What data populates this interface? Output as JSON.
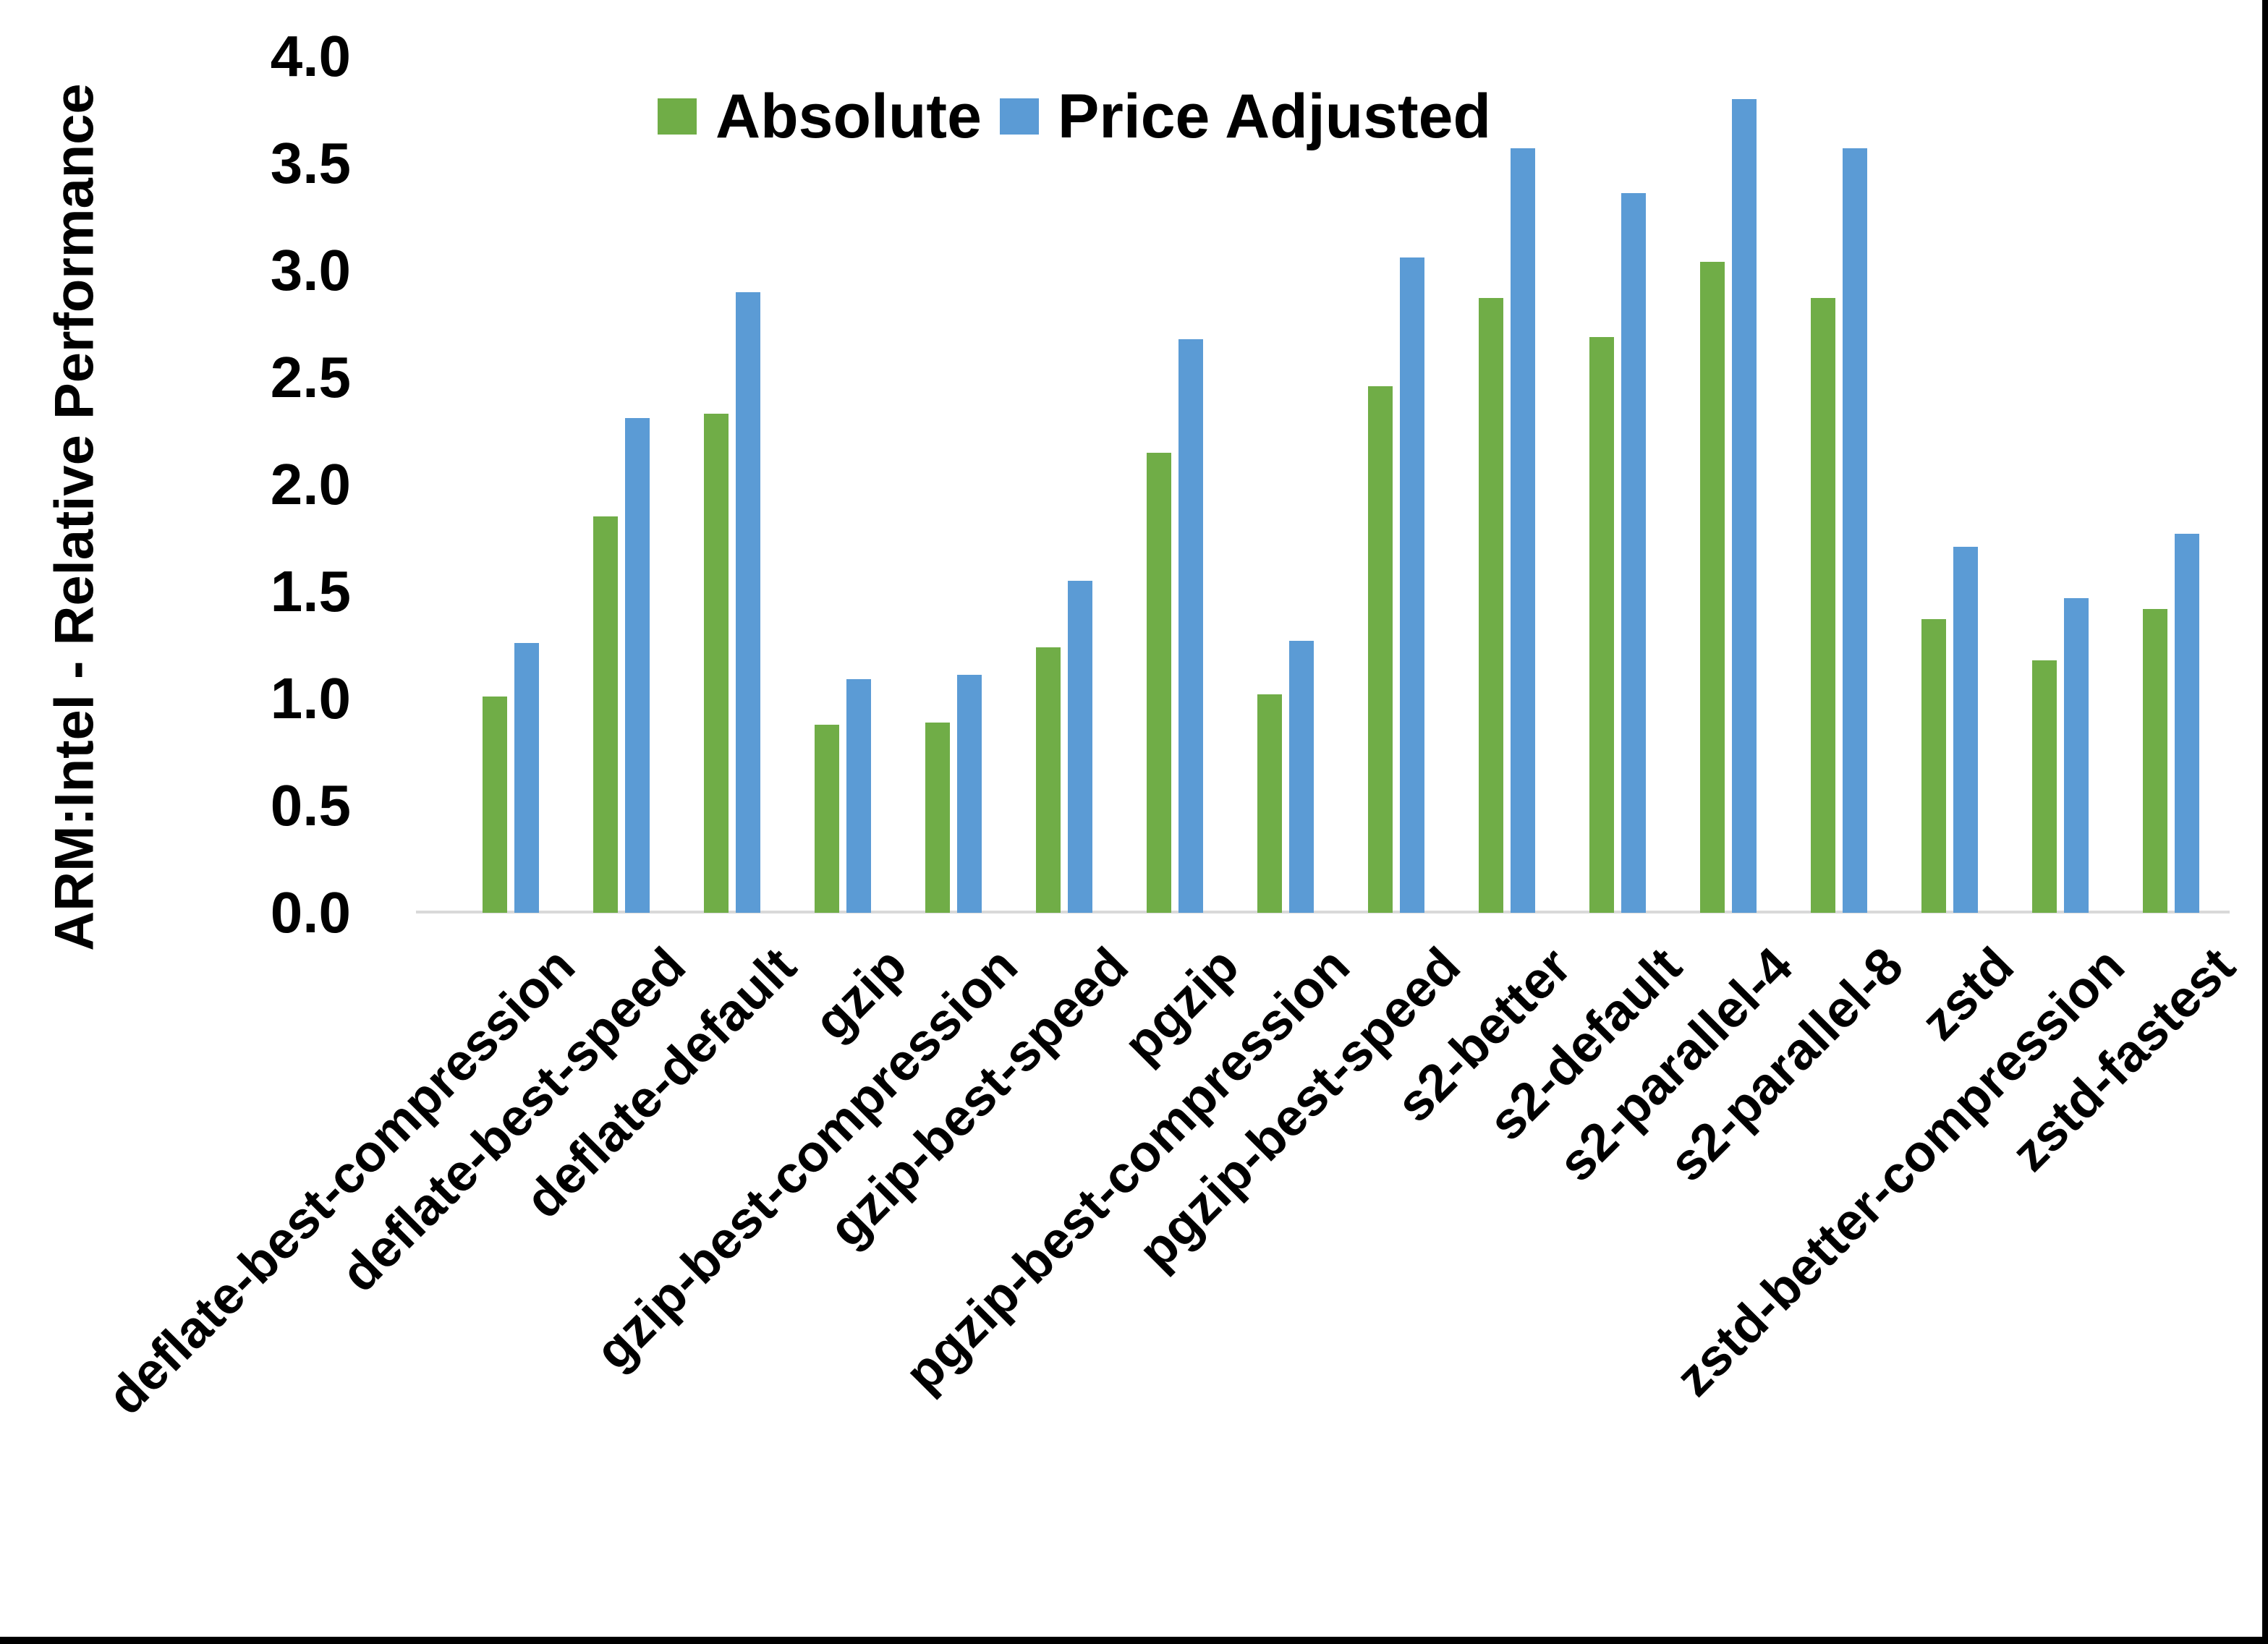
{
  "chart_data": {
    "type": "bar",
    "title": "",
    "xlabel": "",
    "ylabel": "ARM:Intel - Relative Performance",
    "ylim": [
      0.0,
      4.0
    ],
    "ytick_step": 0.5,
    "ytick_labels": [
      "0.0",
      "0.5",
      "1.0",
      "1.5",
      "2.0",
      "2.5",
      "3.0",
      "3.5",
      "4.0"
    ],
    "grid": false,
    "legend_position": "top",
    "categories": [
      "deflate-best-compression",
      "deflate-best-speed",
      "deflate-default",
      "gzip",
      "gzip-best-compression",
      "gzip-best-speed",
      "pgzip",
      "pgzip-best-compression",
      "pgzip-best-speed",
      "s2-better",
      "s2-default",
      "s2-parallel-4",
      "s2-parallel-8",
      "zstd",
      "zstd-better-compression",
      "zstd-fastest"
    ],
    "series": [
      {
        "name": "Absolute",
        "color": "#70AD47",
        "values": [
          1.01,
          1.85,
          2.33,
          0.88,
          0.89,
          1.24,
          2.15,
          1.02,
          2.46,
          2.87,
          2.69,
          3.04,
          2.87,
          1.37,
          1.18,
          1.42
        ]
      },
      {
        "name": "Price Adjusted",
        "color": "#5B9BD5",
        "values": [
          1.26,
          2.31,
          2.9,
          1.09,
          1.11,
          1.55,
          2.68,
          1.27,
          3.06,
          3.57,
          3.36,
          3.8,
          3.57,
          1.71,
          1.47,
          1.77
        ]
      }
    ],
    "colors": {
      "axis_line": "#D9D9D9",
      "frame_border": "#000000",
      "text": "#000000",
      "background": "#FFFFFF"
    }
  }
}
